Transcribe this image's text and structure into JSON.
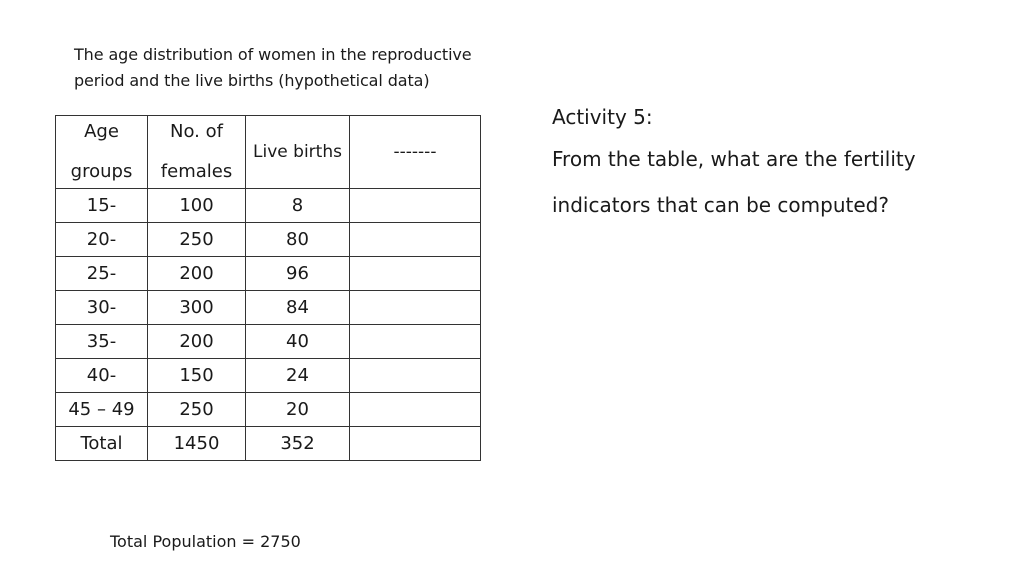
{
  "caption": {
    "line1": "The age distribution of women in the reproductive",
    "line2": "period and the live births (hypothetical data)"
  },
  "table": {
    "headers": {
      "age_line1": "Age",
      "age_line2": "groups",
      "females_line1": "No. of",
      "females_line2": "females",
      "births": "Live births",
      "blank": "-------"
    },
    "rows": [
      {
        "age": "15-",
        "females": "100",
        "births": "8",
        "extra": ""
      },
      {
        "age": "20-",
        "females": "250",
        "births": "80",
        "extra": ""
      },
      {
        "age": "25-",
        "females": "200",
        "births": "96",
        "extra": ""
      },
      {
        "age": "30-",
        "females": "300",
        "births": "84",
        "extra": ""
      },
      {
        "age": "35-",
        "females": "200",
        "births": "40",
        "extra": ""
      },
      {
        "age": "40-",
        "females": "150",
        "births": "24",
        "extra": ""
      },
      {
        "age": "45 – 49",
        "females": "250",
        "births": "20",
        "extra": ""
      },
      {
        "age": "Total",
        "females": "1450",
        "births": "352",
        "extra": ""
      }
    ]
  },
  "activity": {
    "title": "Activity 5:",
    "question_line1": "From the table, what are the fertility",
    "question_line2": "indicators that can be computed?"
  },
  "footer": {
    "population": "Total Population = 2750"
  }
}
